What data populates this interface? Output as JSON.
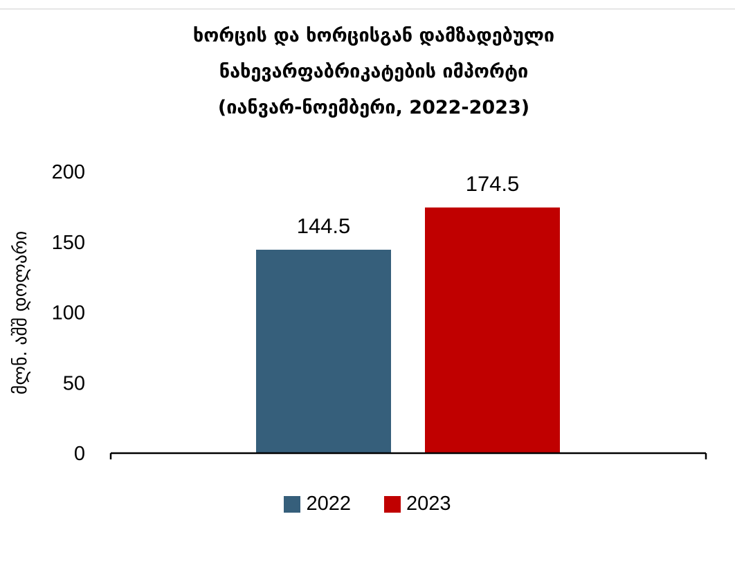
{
  "chart_data": {
    "type": "bar",
    "title_lines": [
      "ხორცის და ხორცისგან დამზადებული",
      "ნახევარფაბრიკატების იმპორტი",
      "(იანვარ-ნოემბერი, 2022-2023)"
    ],
    "xlabel": "",
    "ylabel": "მლნ. აშშ დოლარი",
    "ylim": [
      0,
      200
    ],
    "yticks": [
      0,
      50,
      100,
      150,
      200
    ],
    "grid": false,
    "legend_position": "bottom",
    "series": [
      {
        "name": "2022",
        "value": 144.5,
        "label": "144.5",
        "color": "#365f7b"
      },
      {
        "name": "2023",
        "value": 174.5,
        "label": "174.5",
        "color": "#c00000"
      }
    ]
  }
}
